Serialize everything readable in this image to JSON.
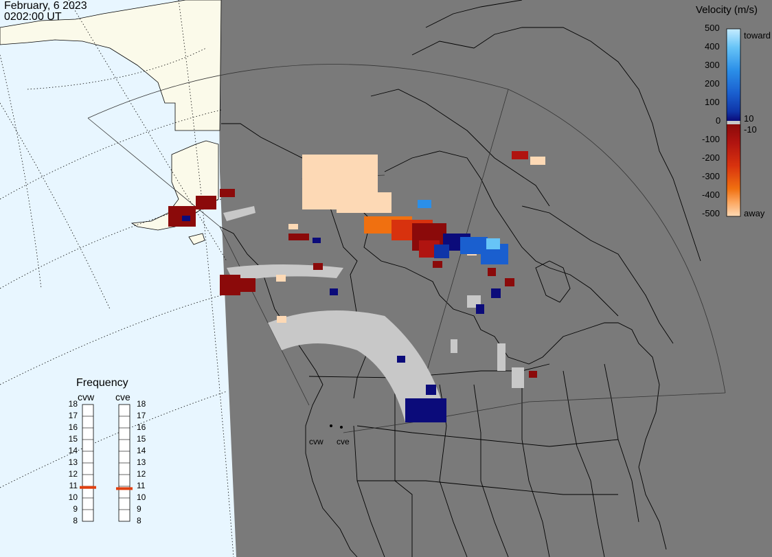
{
  "title": {
    "date": "February, 6 2023",
    "time": "0202:00 UT"
  },
  "colors": {
    "ocean": "#e8f6ff",
    "night": "#7a7a7a",
    "day_land": "#fbfaea",
    "ground_scatter": "#c8c8c8"
  },
  "colorbar": {
    "title": "Velocity (m/s)",
    "ticks": [
      "500",
      "400",
      "300",
      "200",
      "100",
      "10",
      "0",
      "-10",
      "-100",
      "-200",
      "-300",
      "-400",
      "-500"
    ],
    "top_label": "toward",
    "bottom_label": "away",
    "stops": [
      {
        "value": 500,
        "color": "#c6ecff"
      },
      {
        "value": 400,
        "color": "#67c4f7"
      },
      {
        "value": 300,
        "color": "#2b8fe8"
      },
      {
        "value": 200,
        "color": "#1a5fcf"
      },
      {
        "value": 100,
        "color": "#0f35a8"
      },
      {
        "value": 10,
        "color": "#0b0b7a"
      },
      {
        "value": -10,
        "color": "#8b0a0a"
      },
      {
        "value": -100,
        "color": "#b01410"
      },
      {
        "value": -200,
        "color": "#d8320e"
      },
      {
        "value": -300,
        "color": "#f07010"
      },
      {
        "value": -400,
        "color": "#fca862"
      },
      {
        "value": -500,
        "color": "#fdd9b5"
      }
    ]
  },
  "frequency": {
    "title": "Frequency",
    "radars": [
      {
        "name": "cvw",
        "value": 10.9
      },
      {
        "name": "cve",
        "value": 10.8
      }
    ],
    "levels": [
      "18",
      "17",
      "16",
      "15",
      "14",
      "13",
      "12",
      "11",
      "10",
      "9",
      "8"
    ],
    "marker_color": "#e04010"
  },
  "site_labels": [
    "cvw",
    "cve"
  ]
}
